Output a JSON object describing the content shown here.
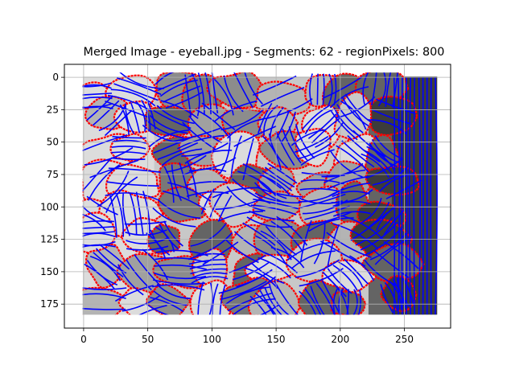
{
  "chart_data": {
    "type": "image",
    "title": "Merged Image - eyeball.jpg - Segments: 62 - regionPixels: 800",
    "image_width": 276,
    "image_height": 184,
    "xlim": [
      -0.5,
      275.5
    ],
    "ylim": [
      183.5,
      -0.5
    ],
    "x_ticks": [
      0,
      50,
      100,
      150,
      200,
      250
    ],
    "y_ticks": [
      0,
      25,
      50,
      75,
      100,
      125,
      150,
      175
    ],
    "grid": true,
    "boundary_color": "#ff0000",
    "contour_color": "#0000ff",
    "gray_levels": [
      "#dcdcdc",
      "#c8c8c8",
      "#b4b4b4",
      "#a0a0a0",
      "#8c8c8c",
      "#787878",
      "#646464",
      "#3c3c3c"
    ]
  }
}
